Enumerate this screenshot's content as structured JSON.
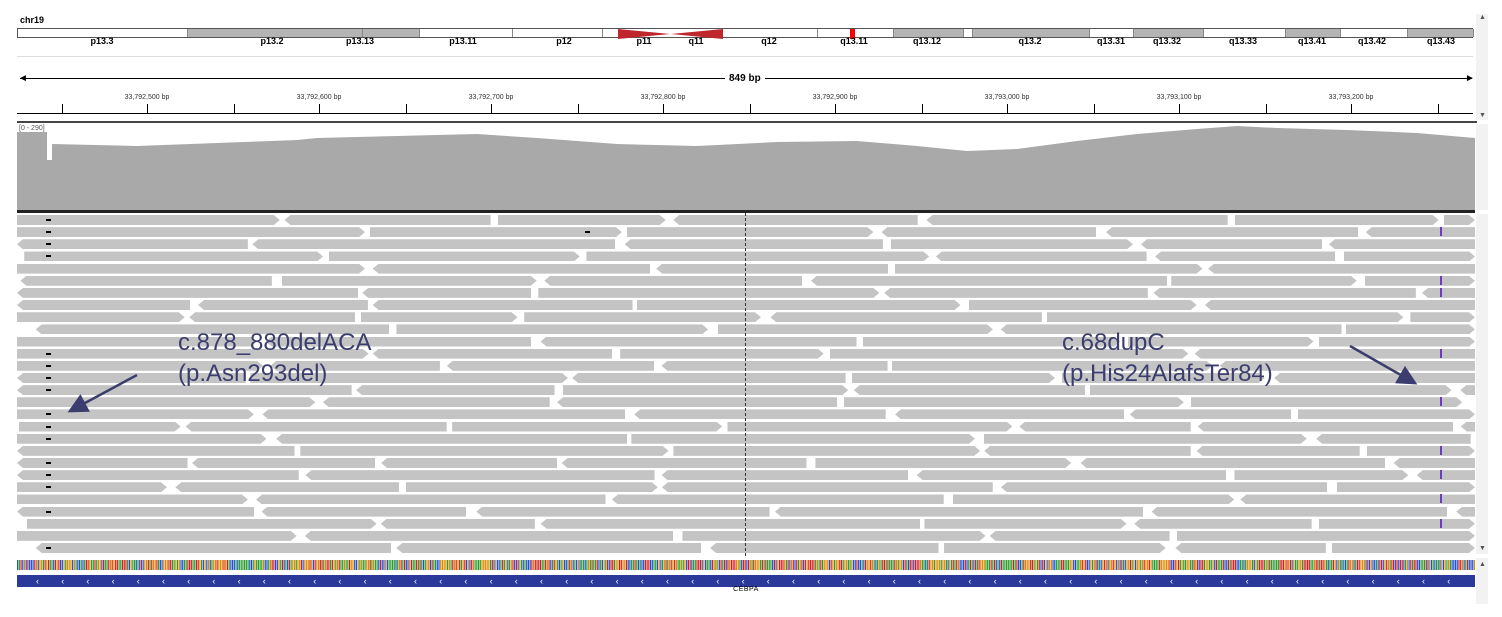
{
  "chromosome": "chr19",
  "ideogram": {
    "band_labels": [
      "p13.3",
      "p13.2",
      "p13.13",
      "p13.11",
      "p12",
      "p11",
      "q11",
      "q12",
      "q13.11",
      "q13.12",
      "q13.2",
      "q13.31",
      "q13.32",
      "q13.33",
      "q13.41",
      "q13.42",
      "q13.43"
    ],
    "colors": {
      "gband": "#b4b4b4",
      "centromere": "#c0272d",
      "locus": "#ff0000"
    }
  },
  "ruler": {
    "span_label": "849 bp",
    "tick_labels": [
      "33,792,500 bp",
      "33,792,600 bp",
      "33,792,700 bp",
      "33,792,800 bp",
      "33,792,900 bp",
      "33,793,000 bp",
      "33,793,100 bp",
      "33,793,200 bp"
    ]
  },
  "coverage": {
    "scale_label": "[0 - 290]",
    "color": "#a9a9a9"
  },
  "reads": {
    "color": "#c4c4c4",
    "insertion_color": "#6a3cc0"
  },
  "gene": {
    "name": "CEBPA",
    "color": "#2b3a9a",
    "strand_glyph": "‹"
  },
  "annotations": [
    {
      "line1": "c.878_880delACA",
      "line2": "(p.Asn293del)"
    },
    {
      "line1": "c.68dupC",
      "line2": "(p.His24AlafsTer84)"
    }
  ],
  "annotation_color": "#3b3d6e"
}
